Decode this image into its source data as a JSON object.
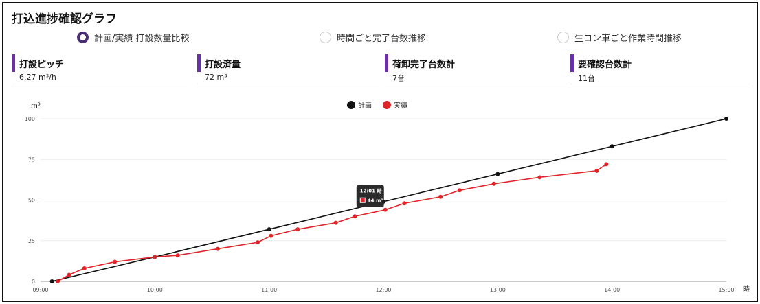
{
  "page": {
    "title": "打込進捗確認グラフ"
  },
  "view_options": [
    {
      "label": "計画/実績 打設数量比較",
      "selected": true
    },
    {
      "label": "時間ごと完了台数推移",
      "selected": false
    },
    {
      "label": "生コン車ごと作業時間推移",
      "selected": false
    }
  ],
  "stats": [
    {
      "label": "打設ピッチ",
      "value": "6.27 m³/h"
    },
    {
      "label": "打設済量",
      "value": "72 m³"
    },
    {
      "label": "荷卸完了台数計",
      "value": "7台"
    },
    {
      "label": "要確認台数計",
      "value": "11台"
    }
  ],
  "colors": {
    "accent": "#6a2fa8",
    "plan": "#111111",
    "actual": "#e0252b",
    "radio_selected": "#4a2d73"
  },
  "chart_data": {
    "type": "line",
    "ylabel": "m³",
    "xlabel": "時",
    "x_ticks": [
      "09:00",
      "10:00",
      "11:00",
      "12:00",
      "13:00",
      "14:00",
      "15:00"
    ],
    "y_ticks": [
      "0",
      "25",
      "50",
      "75",
      "100"
    ],
    "xlim": [
      "09:00",
      "15:00"
    ],
    "ylim": [
      0,
      100
    ],
    "grid": true,
    "legend_position": "top-center",
    "series": [
      {
        "name": "計画",
        "color": "#111111",
        "points": [
          [
            "09:06",
            0
          ],
          [
            "10:00",
            15
          ],
          [
            "11:00",
            32
          ],
          [
            "12:00",
            49
          ],
          [
            "13:00",
            66
          ],
          [
            "14:00",
            83
          ],
          [
            "15:00",
            100
          ]
        ]
      },
      {
        "name": "実績",
        "color": "#e0252b",
        "points": [
          [
            "09:09",
            0
          ],
          [
            "09:15",
            4
          ],
          [
            "09:23",
            8
          ],
          [
            "09:39",
            12
          ],
          [
            "10:00",
            15
          ],
          [
            "10:12",
            16
          ],
          [
            "10:33",
            20
          ],
          [
            "10:54",
            24
          ],
          [
            "11:01",
            28
          ],
          [
            "11:15",
            32
          ],
          [
            "11:35",
            36
          ],
          [
            "11:45",
            40
          ],
          [
            "12:01",
            44
          ],
          [
            "12:11",
            48
          ],
          [
            "12:30",
            52
          ],
          [
            "12:40",
            56
          ],
          [
            "12:58",
            60
          ],
          [
            "13:22",
            64
          ],
          [
            "13:52",
            68
          ],
          [
            "13:57",
            72
          ]
        ]
      }
    ],
    "tooltip": {
      "title": "12:01 時",
      "value": "44 m³",
      "x": "12:01"
    }
  }
}
